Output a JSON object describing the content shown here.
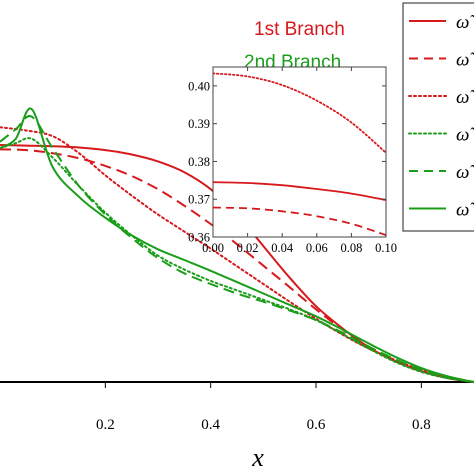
{
  "colors": {
    "branch1": "#d7191c",
    "branch2": "#1a9e1a",
    "axis": "#000000",
    "legend_border": "#222222"
  },
  "annotations": {
    "branch1_label": "1st Branch",
    "branch2_label": "2nd Branch"
  },
  "chart_data": [
    {
      "type": "line",
      "title": "",
      "xlabel": "x",
      "ylabel": "",
      "xlim": [
        0.0,
        0.9
      ],
      "ylim": [
        0.0,
        0.42
      ],
      "x_ticks": [
        "0.2",
        "0.4",
        "0.6",
        "0.8"
      ],
      "grid": false,
      "legend": {
        "placement": "top-right",
        "entries": [
          "ω̃",
          "ω̃",
          "ω̃",
          "ω̃",
          "ω̃",
          "ω̃"
        ]
      },
      "series": [
        {
          "branch": "1st",
          "style": "solid",
          "color": "#d7191c",
          "x": [
            0.0,
            0.05,
            0.1,
            0.15,
            0.2,
            0.25,
            0.3,
            0.35,
            0.4,
            0.45,
            0.5,
            0.55,
            0.6,
            0.65,
            0.7,
            0.75,
            0.8,
            0.85,
            0.9
          ],
          "y": [
            0.375,
            0.374,
            0.373,
            0.371,
            0.367,
            0.36,
            0.349,
            0.332,
            0.305,
            0.265,
            0.215,
            0.165,
            0.12,
            0.085,
            0.055,
            0.033,
            0.017,
            0.006,
            0.0
          ]
        },
        {
          "branch": "1st",
          "style": "dashed",
          "color": "#d7191c",
          "x": [
            0.0,
            0.05,
            0.1,
            0.15,
            0.2,
            0.25,
            0.3,
            0.35,
            0.4,
            0.45,
            0.5,
            0.55,
            0.6,
            0.65,
            0.7,
            0.75,
            0.8,
            0.85,
            0.9
          ],
          "y": [
            0.368,
            0.367,
            0.362,
            0.354,
            0.342,
            0.326,
            0.305,
            0.279,
            0.25,
            0.218,
            0.184,
            0.15,
            0.115,
            0.083,
            0.056,
            0.035,
            0.019,
            0.007,
            0.0
          ]
        },
        {
          "branch": "1st",
          "style": "dotted",
          "color": "#d7191c",
          "x": [
            0.0,
            0.05,
            0.1,
            0.15,
            0.2,
            0.25,
            0.3,
            0.35,
            0.4,
            0.45,
            0.5,
            0.55,
            0.6,
            0.65,
            0.7,
            0.75,
            0.8,
            0.85,
            0.9
          ],
          "y": [
            0.403,
            0.398,
            0.389,
            0.362,
            0.327,
            0.295,
            0.265,
            0.238,
            0.211,
            0.183,
            0.155,
            0.127,
            0.1,
            0.075,
            0.053,
            0.035,
            0.019,
            0.008,
            0.0
          ]
        },
        {
          "branch": "2nd",
          "style": "dotted",
          "color": "#1a9e1a",
          "x": [
            0.0,
            0.03,
            0.06,
            0.1,
            0.15,
            0.2,
            0.25,
            0.3,
            0.35,
            0.4,
            0.45,
            0.5,
            0.55,
            0.6,
            0.65,
            0.7,
            0.75,
            0.8,
            0.85,
            0.9
          ],
          "y": [
            0.37,
            0.378,
            0.385,
            0.355,
            0.31,
            0.268,
            0.232,
            0.2,
            0.178,
            0.16,
            0.145,
            0.13,
            0.115,
            0.098,
            0.076,
            0.053,
            0.032,
            0.016,
            0.006,
            0.0
          ]
        },
        {
          "branch": "2nd",
          "style": "dashed",
          "color": "#1a9e1a",
          "x": [
            0.0,
            0.03,
            0.06,
            0.1,
            0.15,
            0.2,
            0.25,
            0.3,
            0.35,
            0.4,
            0.45,
            0.5,
            0.55,
            0.6,
            0.65,
            0.7,
            0.75,
            0.8,
            0.85,
            0.9
          ],
          "y": [
            0.38,
            0.4,
            0.42,
            0.37,
            0.31,
            0.265,
            0.228,
            0.196,
            0.172,
            0.155,
            0.14,
            0.127,
            0.113,
            0.098,
            0.078,
            0.056,
            0.036,
            0.019,
            0.007,
            0.0
          ]
        },
        {
          "branch": "2nd",
          "style": "solid",
          "color": "#1a9e1a",
          "x": [
            0.0,
            0.03,
            0.06,
            0.1,
            0.15,
            0.2,
            0.25,
            0.3,
            0.35,
            0.4,
            0.45,
            0.5,
            0.55,
            0.6,
            0.65,
            0.7,
            0.75,
            0.8,
            0.85,
            0.9
          ],
          "y": [
            0.37,
            0.385,
            0.432,
            0.34,
            0.293,
            0.26,
            0.232,
            0.21,
            0.193,
            0.176,
            0.158,
            0.14,
            0.122,
            0.104,
            0.083,
            0.061,
            0.04,
            0.022,
            0.009,
            0.0
          ]
        }
      ]
    },
    {
      "type": "line",
      "title": "",
      "xlabel": "",
      "ylabel": "",
      "xlim": [
        0.0,
        0.1
      ],
      "ylim": [
        0.36,
        0.405
      ],
      "x_ticks": [
        "0.00",
        "0.02",
        "0.04",
        "0.06",
        "0.08",
        "0.10"
      ],
      "y_ticks": [
        "0.36",
        "0.37",
        "0.38",
        "0.39",
        "0.40"
      ],
      "grid": false,
      "series": [
        {
          "style": "solid",
          "color": "#d7191c",
          "x": [
            0.0,
            0.02,
            0.04,
            0.06,
            0.08,
            0.1
          ],
          "y": [
            0.3745,
            0.3743,
            0.3737,
            0.3727,
            0.3715,
            0.3698
          ]
        },
        {
          "style": "dashed",
          "color": "#d7191c",
          "x": [
            0.0,
            0.02,
            0.04,
            0.06,
            0.08,
            0.1
          ],
          "y": [
            0.3678,
            0.3676,
            0.3668,
            0.3655,
            0.3635,
            0.3605
          ]
        },
        {
          "style": "dotted",
          "color": "#d7191c",
          "x": [
            0.0,
            0.02,
            0.04,
            0.06,
            0.08,
            0.1
          ],
          "y": [
            0.4033,
            0.4025,
            0.4002,
            0.3961,
            0.3903,
            0.3823
          ]
        }
      ]
    }
  ]
}
